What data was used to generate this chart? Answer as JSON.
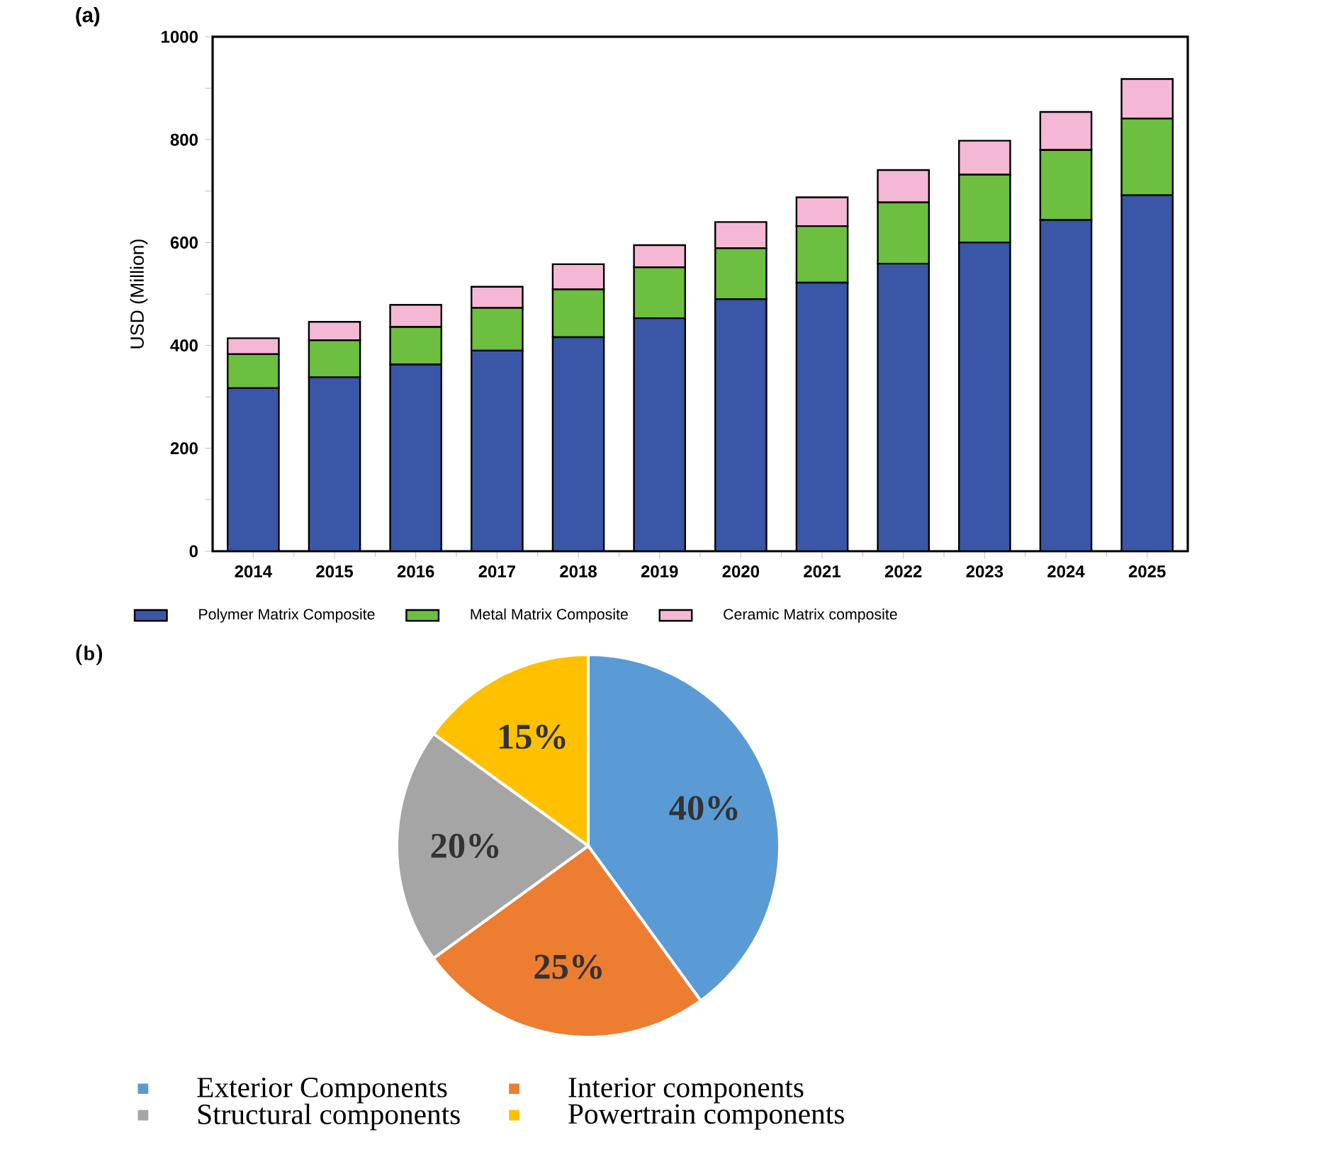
{
  "chart_data": [
    {
      "type": "bar",
      "title": "(a)",
      "ylabel": "USD (Million)",
      "categories": [
        "2014",
        "2015",
        "2016",
        "2017",
        "2018",
        "2019",
        "2020",
        "2021",
        "2022",
        "2023",
        "2024",
        "2025"
      ],
      "stacked": true,
      "series": [
        {
          "name": "Polymer Matrix Composite",
          "color": "#3a57a7",
          "values": [
            317,
            338,
            363,
            390,
            416,
            453,
            490,
            522,
            559,
            600,
            644,
            692
          ]
        },
        {
          "name": "Metal Matrix Composite",
          "color": "#6cbf3f",
          "values": [
            66,
            72,
            73,
            83,
            93,
            99,
            99,
            110,
            119,
            132,
            136,
            149
          ]
        },
        {
          "name": "Ceramic Matrix composite",
          "color": "#f4b8d4",
          "values": [
            31,
            36,
            43,
            41,
            49,
            43,
            51,
            56,
            63,
            66,
            74,
            77
          ]
        }
      ],
      "ylim": [
        0,
        1000
      ],
      "yticks": [
        0,
        {
          "value": 100,
          "label": null
        },
        200,
        {
          "value": 300,
          "label": null
        },
        400,
        {
          "value": 500,
          "label": null
        },
        600,
        {
          "value": 700,
          "label": null
        },
        800,
        {
          "value": 900,
          "label": null
        },
        1000
      ],
      "legend": "bottom"
    },
    {
      "type": "pie",
      "title": "(b)",
      "categories": [
        "Exterior Components",
        "Interior components",
        "Structural components",
        "Powertrain components"
      ],
      "values": [
        40,
        25,
        20,
        15
      ],
      "colors": [
        "#5b9bd5",
        "#ed7d31",
        "#a5a5a5",
        "#ffc000"
      ],
      "value_labels": [
        "40%",
        "25%",
        "20%",
        "15%"
      ],
      "legend": "bottom"
    }
  ]
}
